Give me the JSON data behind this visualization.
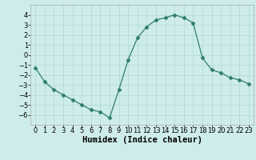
{
  "x": [
    0,
    1,
    2,
    3,
    4,
    5,
    6,
    7,
    8,
    9,
    10,
    11,
    12,
    13,
    14,
    15,
    16,
    17,
    18,
    19,
    20,
    21,
    22,
    23
  ],
  "y": [
    -1.3,
    -2.7,
    -3.5,
    -4.0,
    -4.5,
    -5.0,
    -5.5,
    -5.7,
    -6.3,
    -3.5,
    -0.5,
    1.7,
    2.8,
    3.5,
    3.7,
    4.0,
    3.7,
    3.2,
    -0.3,
    -1.5,
    -1.8,
    -2.3,
    -2.5,
    -2.9
  ],
  "line_color": "#2e7d6e",
  "marker": "D",
  "marker_size": 2.5,
  "bg_color": "#ceecea",
  "grid_color": "#b0d8d4",
  "xlabel": "Humidex (Indice chaleur)",
  "xlabel_fontsize": 7.5,
  "tick_fontsize": 6,
  "xlim": [
    -0.5,
    23.5
  ],
  "ylim": [
    -7,
    5
  ],
  "yticks": [
    -6,
    -5,
    -4,
    -3,
    -2,
    -1,
    0,
    1,
    2,
    3,
    4
  ],
  "xticks": [
    0,
    1,
    2,
    3,
    4,
    5,
    6,
    7,
    8,
    9,
    10,
    11,
    12,
    13,
    14,
    15,
    16,
    17,
    18,
    19,
    20,
    21,
    22,
    23
  ]
}
